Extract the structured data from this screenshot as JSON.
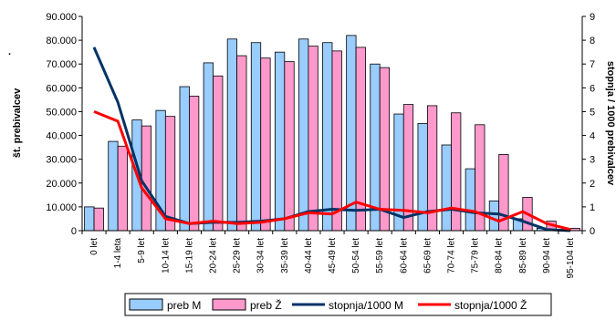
{
  "chart_data": {
    "type": "bar",
    "categories": [
      "0 let",
      "1-4 leta",
      "5-9 let",
      "10-14 let",
      "15-19 let",
      "20-24 let",
      "25-29 let",
      "30-34 let",
      "35-39 let",
      "40-44 let",
      "45-49 let",
      "50-54 let",
      "55-59 let",
      "60-64 let",
      "65-69 let",
      "70-74 let",
      "75-79 let",
      "80-84 let",
      "85-89 let",
      "90-94 let",
      "95-104 let"
    ],
    "ylabel_left": "št. prebivalcev",
    "ylabel_right": "stopnja / 1000 prebivalcev",
    "dot_label": ".",
    "y_left_lim": [
      0,
      90000
    ],
    "y_left_ticks": [
      "0",
      "10.000",
      "20.000",
      "30.000",
      "40.000",
      "50.000",
      "60.000",
      "70.000",
      "80.000",
      "90.000"
    ],
    "y_right_lim": [
      0,
      9
    ],
    "y_right_ticks": [
      "0",
      "1",
      "2",
      "3",
      "4",
      "5",
      "6",
      "7",
      "8",
      "9"
    ],
    "grid": false,
    "legend_position": "bottom",
    "bar_series": [
      {
        "name": "preb M",
        "axis": "left",
        "color": "#99CCFF",
        "values": [
          10000,
          37500,
          46500,
          50500,
          60500,
          70500,
          80500,
          79000,
          75000,
          80500,
          79000,
          82000,
          70000,
          49000,
          45000,
          36000,
          26000,
          12500,
          5000,
          1000,
          0
        ]
      },
      {
        "name": "preb Ž",
        "axis": "left",
        "color": "#FF99CC",
        "values": [
          9500,
          35500,
          44000,
          48000,
          56500,
          65000,
          73500,
          72500,
          71000,
          77500,
          75500,
          77000,
          68500,
          53000,
          52500,
          49500,
          44500,
          32000,
          14000,
          4000,
          1000
        ]
      }
    ],
    "line_series": [
      {
        "name": "stopnja/1000 M",
        "axis": "right",
        "color": "#003366",
        "values": [
          7.7,
          5.4,
          2.1,
          0.6,
          0.3,
          0.35,
          0.35,
          0.4,
          0.5,
          0.8,
          0.9,
          0.85,
          0.9,
          0.55,
          0.8,
          0.9,
          0.75,
          0.7,
          0.4,
          0.05,
          0
        ]
      },
      {
        "name": "stopnja/1000 Ž",
        "axis": "right",
        "color": "#FF0000",
        "values": [
          5.0,
          4.6,
          1.8,
          0.5,
          0.3,
          0.4,
          0.3,
          0.35,
          0.5,
          0.75,
          0.7,
          1.2,
          0.9,
          0.85,
          0.75,
          0.95,
          0.8,
          0.4,
          0.8,
          0.3,
          0.05
        ]
      }
    ]
  }
}
